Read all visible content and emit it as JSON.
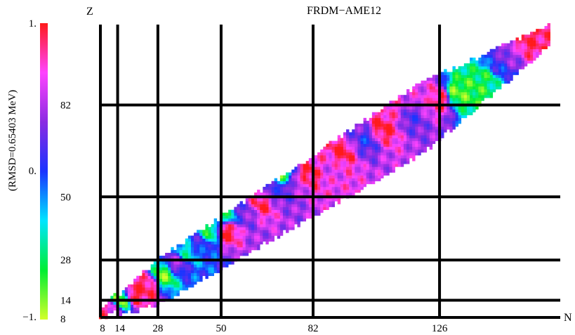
{
  "chart_data": {
    "type": "heatmap",
    "title": "FRDM−AME12",
    "xlabel": "N",
    "ylabel": "Z",
    "xlim": [
      8,
      168
    ],
    "ylim": [
      8,
      110
    ],
    "colorbar": {
      "label": "(RMSD=0.65403 MeV)",
      "ticks": [
        "1.",
        "0.",
        "−1."
      ],
      "range": [
        -1,
        1
      ],
      "colors": [
        "#d4ff2a",
        "#00ee33",
        "#00e5ff",
        "#1a33ff",
        "#8a2be2",
        "#ff44ff",
        "#ff1a1a"
      ]
    },
    "magic_numbers": {
      "n_lines": [
        8,
        14,
        28,
        50,
        82,
        126
      ],
      "z_lines": [
        8,
        14,
        28,
        50,
        82
      ],
      "n_tick_labels": [
        "8",
        "14",
        "28",
        "50",
        "82",
        "126"
      ],
      "z_tick_labels": [
        "8",
        "14",
        "28",
        "50",
        "82"
      ]
    },
    "regions": [
      {
        "n": 10,
        "z": 9,
        "value": 0.9
      },
      {
        "n": 12,
        "z": 11,
        "value": 0.6
      },
      {
        "n": 15,
        "z": 14,
        "value": -0.9
      },
      {
        "n": 20,
        "z": 16,
        "value": 0.95
      },
      {
        "n": 24,
        "z": 19,
        "value": 0.9
      },
      {
        "n": 30,
        "z": 23,
        "value": -0.8
      },
      {
        "n": 34,
        "z": 27,
        "value": 0.4
      },
      {
        "n": 38,
        "z": 31,
        "value": -0.4
      },
      {
        "n": 42,
        "z": 34,
        "value": 0.1
      },
      {
        "n": 46,
        "z": 38,
        "value": -0.6
      },
      {
        "n": 52,
        "z": 38,
        "value": 0.95
      },
      {
        "n": 52,
        "z": 44,
        "value": -0.5
      },
      {
        "n": 58,
        "z": 45,
        "value": 0.3
      },
      {
        "n": 64,
        "z": 48,
        "value": 0.9
      },
      {
        "n": 68,
        "z": 52,
        "value": 0.2
      },
      {
        "n": 72,
        "z": 58,
        "value": -0.7
      },
      {
        "n": 76,
        "z": 56,
        "value": 0.5
      },
      {
        "n": 80,
        "z": 58,
        "value": 0.95
      },
      {
        "n": 84,
        "z": 64,
        "value": 0.7
      },
      {
        "n": 88,
        "z": 60,
        "value": 0.6
      },
      {
        "n": 92,
        "z": 66,
        "value": 0.95
      },
      {
        "n": 96,
        "z": 72,
        "value": 0.3
      },
      {
        "n": 100,
        "z": 70,
        "value": 0.1
      },
      {
        "n": 106,
        "z": 74,
        "value": 0.95
      },
      {
        "n": 110,
        "z": 80,
        "value": 0.7
      },
      {
        "n": 116,
        "z": 78,
        "value": 0.2
      },
      {
        "n": 120,
        "z": 84,
        "value": 0.6
      },
      {
        "n": 126,
        "z": 84,
        "value": 0.9
      },
      {
        "n": 132,
        "z": 86,
        "value": -0.8
      },
      {
        "n": 138,
        "z": 88,
        "value": -0.7
      },
      {
        "n": 142,
        "z": 92,
        "value": -0.6
      },
      {
        "n": 146,
        "z": 96,
        "value": 0.1
      },
      {
        "n": 150,
        "z": 100,
        "value": 0.4
      },
      {
        "n": 156,
        "z": 104,
        "value": 0.9
      }
    ]
  }
}
